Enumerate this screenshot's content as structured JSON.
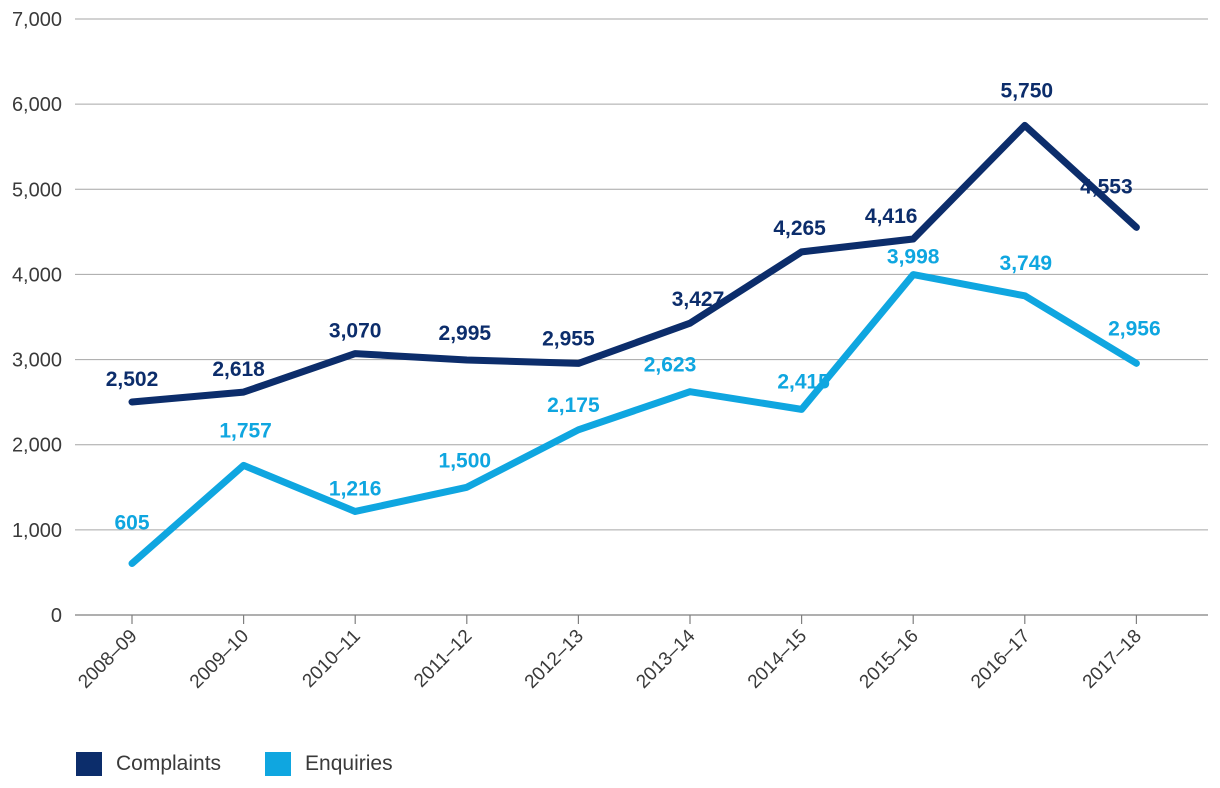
{
  "chart_data": {
    "type": "line",
    "title": "",
    "xlabel": "",
    "ylabel": "",
    "categories": [
      "2008–09",
      "2009–10",
      "2010–11",
      "2011–12",
      "2012–13",
      "2013–14",
      "2014–15",
      "2015–16",
      "2016–17",
      "2017–18"
    ],
    "ylim": [
      0,
      7000
    ],
    "yticks": [
      0,
      1000,
      2000,
      3000,
      4000,
      5000,
      6000,
      7000
    ],
    "ytick_labels": [
      "0",
      "1,000",
      "2,000",
      "3,000",
      "4,000",
      "5,000",
      "6,000",
      "7,000"
    ],
    "grid": "horizontal",
    "legend_position": "bottom-left",
    "series": [
      {
        "name": "Complaints",
        "color": "#0c2d6b",
        "values": [
          2502,
          2618,
          3070,
          2995,
          2955,
          3427,
          4265,
          4416,
          5750,
          4553
        ],
        "labels": [
          "2,502",
          "2,618",
          "3,070",
          "2,995",
          "2,955",
          "3,427",
          "4,265",
          "4,416",
          "5,750",
          "4,553"
        ]
      },
      {
        "name": "Enquiries",
        "color": "#0fa6e0",
        "values": [
          605,
          1757,
          1216,
          1500,
          2175,
          2623,
          2415,
          3998,
          3749,
          2956
        ],
        "labels": [
          "605",
          "1,757",
          "1,216",
          "1,500",
          "2,175",
          "2,623",
          "2,415",
          "3,998",
          "3,749",
          "2,956"
        ]
      }
    ]
  }
}
